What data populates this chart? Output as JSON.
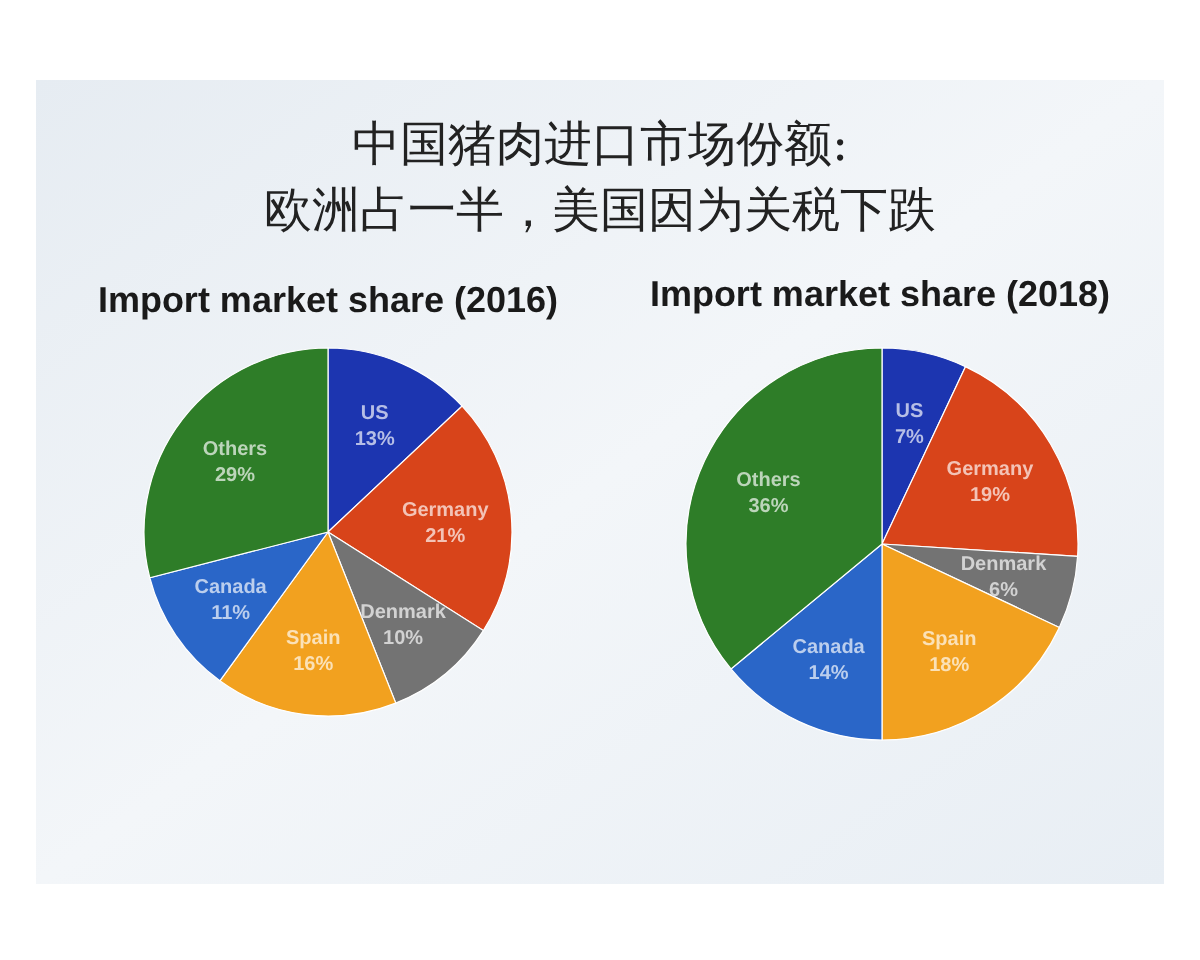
{
  "chart_data": [
    {
      "type": "other",
      "title": "中国猪肉进口市场份额:\n欧洲占一半，美国因为关税下跌"
    },
    {
      "type": "pie",
      "title": "Import market share (2016)",
      "categories": [
        "US",
        "Germany",
        "Denmark",
        "Spain",
        "Canada",
        "Others"
      ],
      "values": [
        13,
        21,
        10,
        16,
        11,
        29
      ],
      "value_labels": [
        "13%",
        "21%",
        "10%",
        "16%",
        "11%",
        "29%"
      ],
      "colors": [
        "#1c35b0",
        "#d8441a",
        "#737373",
        "#f2a11f",
        "#2a66c8",
        "#2e7d28"
      ]
    },
    {
      "type": "pie",
      "title": "Import market share (2018)",
      "categories": [
        "US",
        "Germany",
        "Denmark",
        "Spain",
        "Canada",
        "Others"
      ],
      "values": [
        7,
        19,
        6,
        18,
        14,
        36
      ],
      "value_labels": [
        "7%",
        "19%",
        "6%",
        "18%",
        "14%",
        "36%"
      ],
      "colors": [
        "#1c35b0",
        "#d8441a",
        "#737373",
        "#f2a11f",
        "#2a66c8",
        "#2e7d28"
      ]
    }
  ]
}
